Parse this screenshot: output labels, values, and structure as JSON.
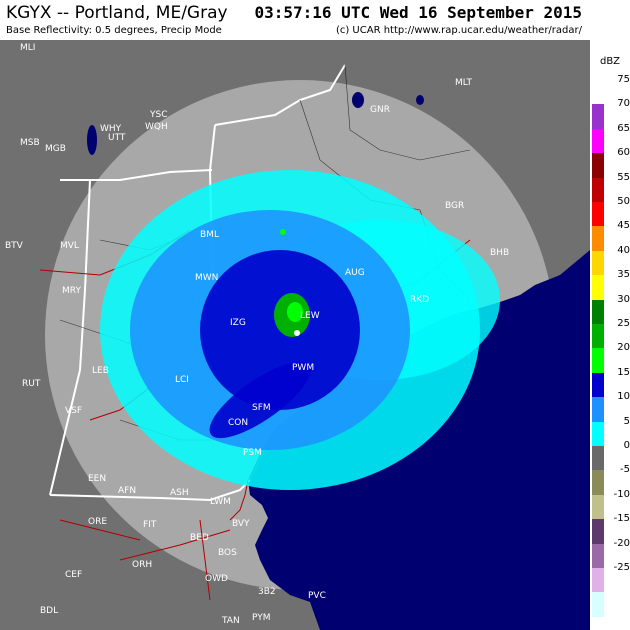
{
  "header": {
    "station_title": "KGYX -- Portland, ME/Gray",
    "timestamp": "03:57:16 UTC Wed 16 September 2015",
    "product": "Base Reflectivity: 0.5 degrees, Precip Mode",
    "credit": "(c) UCAR  http://www.rap.ucar.edu/weather/radar/"
  },
  "legend": {
    "unit": "dBZ",
    "entries": [
      {
        "value": "75",
        "color": "#ffffff"
      },
      {
        "value": "70",
        "color": "#9932cc"
      },
      {
        "value": "65",
        "color": "#ff00ff"
      },
      {
        "value": "60",
        "color": "#8b0000"
      },
      {
        "value": "55",
        "color": "#c00000"
      },
      {
        "value": "50",
        "color": "#ff0000"
      },
      {
        "value": "45",
        "color": "#ff8c00"
      },
      {
        "value": "40",
        "color": "#ffd700"
      },
      {
        "value": "35",
        "color": "#ffff00"
      },
      {
        "value": "30",
        "color": "#008000"
      },
      {
        "value": "25",
        "color": "#00b000"
      },
      {
        "value": "20",
        "color": "#00ff00"
      },
      {
        "value": "15",
        "color": "#0000cd"
      },
      {
        "value": "10",
        "color": "#1e90ff"
      },
      {
        "value": "5",
        "color": "#00ffff"
      },
      {
        "value": "0",
        "color": "#696969"
      },
      {
        "value": "-5",
        "color": "#8b8b5a"
      },
      {
        "value": "-10",
        "color": "#c0c08c"
      },
      {
        "value": "-15",
        "color": "#5c3a6e"
      },
      {
        "value": "-20",
        "color": "#9a6aa8"
      },
      {
        "value": "-25",
        "color": "#e0b0e8"
      },
      {
        "value": "",
        "color": "#d8ffff"
      }
    ]
  },
  "map": {
    "colors": {
      "outside": "#707070",
      "radar_range": "#a8a8a8",
      "ocean": "#000070",
      "state_border": "#ffffff",
      "county": "#000000",
      "highway": "#b00000"
    },
    "places": [
      {
        "name": "MLI"
      },
      {
        "name": "MLT"
      },
      {
        "name": "YSC"
      },
      {
        "name": "WQH"
      },
      {
        "name": "WHY"
      },
      {
        "name": "UTT"
      },
      {
        "name": "MGB"
      },
      {
        "name": "MSB"
      },
      {
        "name": "GNR"
      },
      {
        "name": "BGR"
      },
      {
        "name": "BTV"
      },
      {
        "name": "MVL"
      },
      {
        "name": "MRY"
      },
      {
        "name": "RUT"
      },
      {
        "name": "LEB"
      },
      {
        "name": "VSF"
      },
      {
        "name": "EEN"
      },
      {
        "name": "AFN"
      },
      {
        "name": "ASH"
      },
      {
        "name": "ORE"
      },
      {
        "name": "FIT"
      },
      {
        "name": "BED"
      },
      {
        "name": "BOS"
      },
      {
        "name": "OWD"
      },
      {
        "name": "ORH"
      },
      {
        "name": "PYM"
      },
      {
        "name": "PVC"
      },
      {
        "name": "LWM"
      },
      {
        "name": "BVY"
      },
      {
        "name": "3B2"
      },
      {
        "name": "TAN"
      },
      {
        "name": "PSM"
      },
      {
        "name": "SFM"
      },
      {
        "name": "PWM"
      },
      {
        "name": "LEW"
      },
      {
        "name": "IZG"
      },
      {
        "name": "CON"
      },
      {
        "name": "LCI"
      },
      {
        "name": "BML"
      },
      {
        "name": "MWN"
      },
      {
        "name": "AUG"
      },
      {
        "name": "RKD"
      },
      {
        "name": "BHB"
      },
      {
        "name": "CEF"
      },
      {
        "name": "BDL"
      }
    ]
  }
}
